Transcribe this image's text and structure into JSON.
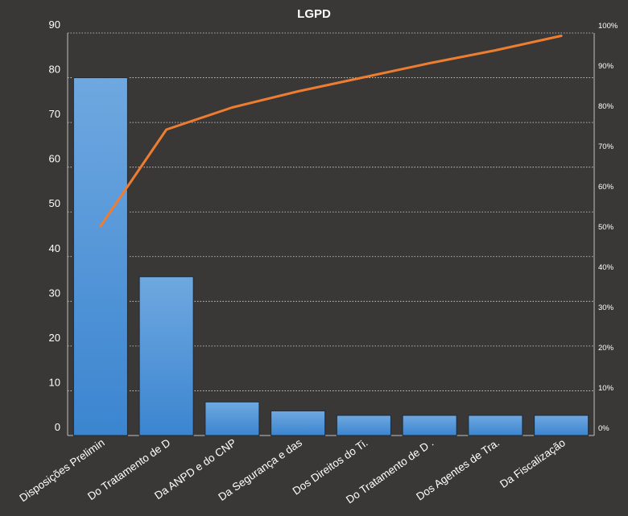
{
  "chart_data": {
    "type": "bar",
    "title": "LGPD",
    "categories": [
      "Disposições Prelimin",
      "Do Tratamento de D",
      "Da ANPD e do CNP",
      "Da Segurança e das",
      "Dos Direitos do Ti.",
      "Do Tratamento de D .",
      "Dos Agentes de Tra.",
      "Da Fiscalização"
    ],
    "series": [
      {
        "type": "bar",
        "values": [
          80,
          35.5,
          7.5,
          5.5,
          4.5,
          4.5,
          4.5,
          4.5
        ],
        "color": "#4a8fd6"
      },
      {
        "type": "line",
        "axis": "right",
        "values": [
          52,
          76,
          81.5,
          85.5,
          89,
          92.5,
          95.7,
          99.3
        ],
        "color": "#ed7d31"
      }
    ],
    "ylim": [
      0,
      90
    ],
    "yticks": [
      "0",
      "10",
      "20",
      "30",
      "40",
      "50",
      "60",
      "70",
      "80",
      "90"
    ],
    "y2lim": [
      0,
      100
    ],
    "y2ticks": [
      "0%",
      "10%",
      "20%",
      "30%",
      "40%",
      "50%",
      "60%",
      "70%",
      "80%",
      "90%",
      "100%"
    ],
    "grid": "horizontal dotted",
    "legend": "none"
  }
}
